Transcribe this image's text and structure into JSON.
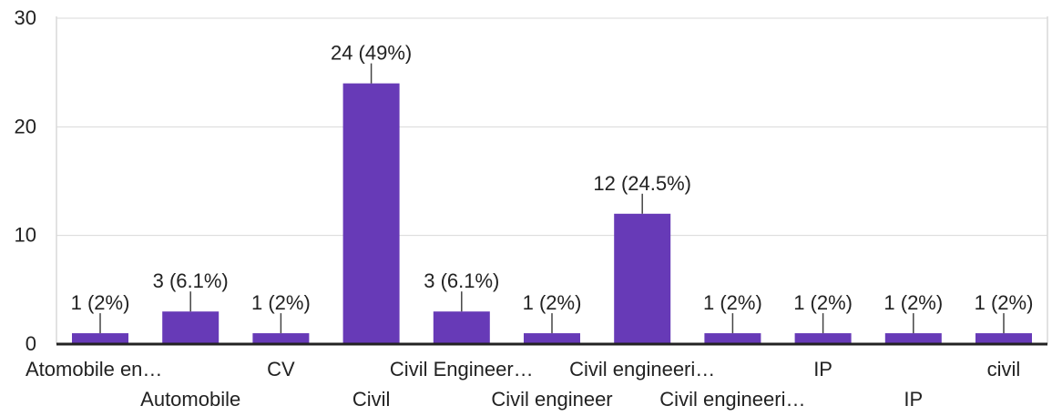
{
  "chart_data": {
    "type": "bar",
    "title": "",
    "xlabel": "",
    "ylabel": "",
    "ylim": [
      0,
      30
    ],
    "yticks": [
      0,
      10,
      20,
      30
    ],
    "grid": true,
    "bar_color": "#673ab7",
    "axis_color": "#222222",
    "grid_color": "#d9d9d9",
    "categories": [
      "Atomobile en…",
      "Automobile",
      "CV",
      "Civil",
      "Civil Engineer…",
      "Civil engineer",
      "Civil engineeri…",
      "Civil engineeri…",
      "IP",
      "IP",
      "civil"
    ],
    "values": [
      1,
      3,
      1,
      24,
      3,
      1,
      12,
      1,
      1,
      1,
      1
    ],
    "data_labels": [
      "1 (2%)",
      "3 (6.1%)",
      "1 (2%)",
      "24 (49%)",
      "3 (6.1%)",
      "1 (2%)",
      "12 (24.5%)",
      "1 (2%)",
      "1 (2%)",
      "1 (2%)",
      "1 (2%)"
    ]
  }
}
